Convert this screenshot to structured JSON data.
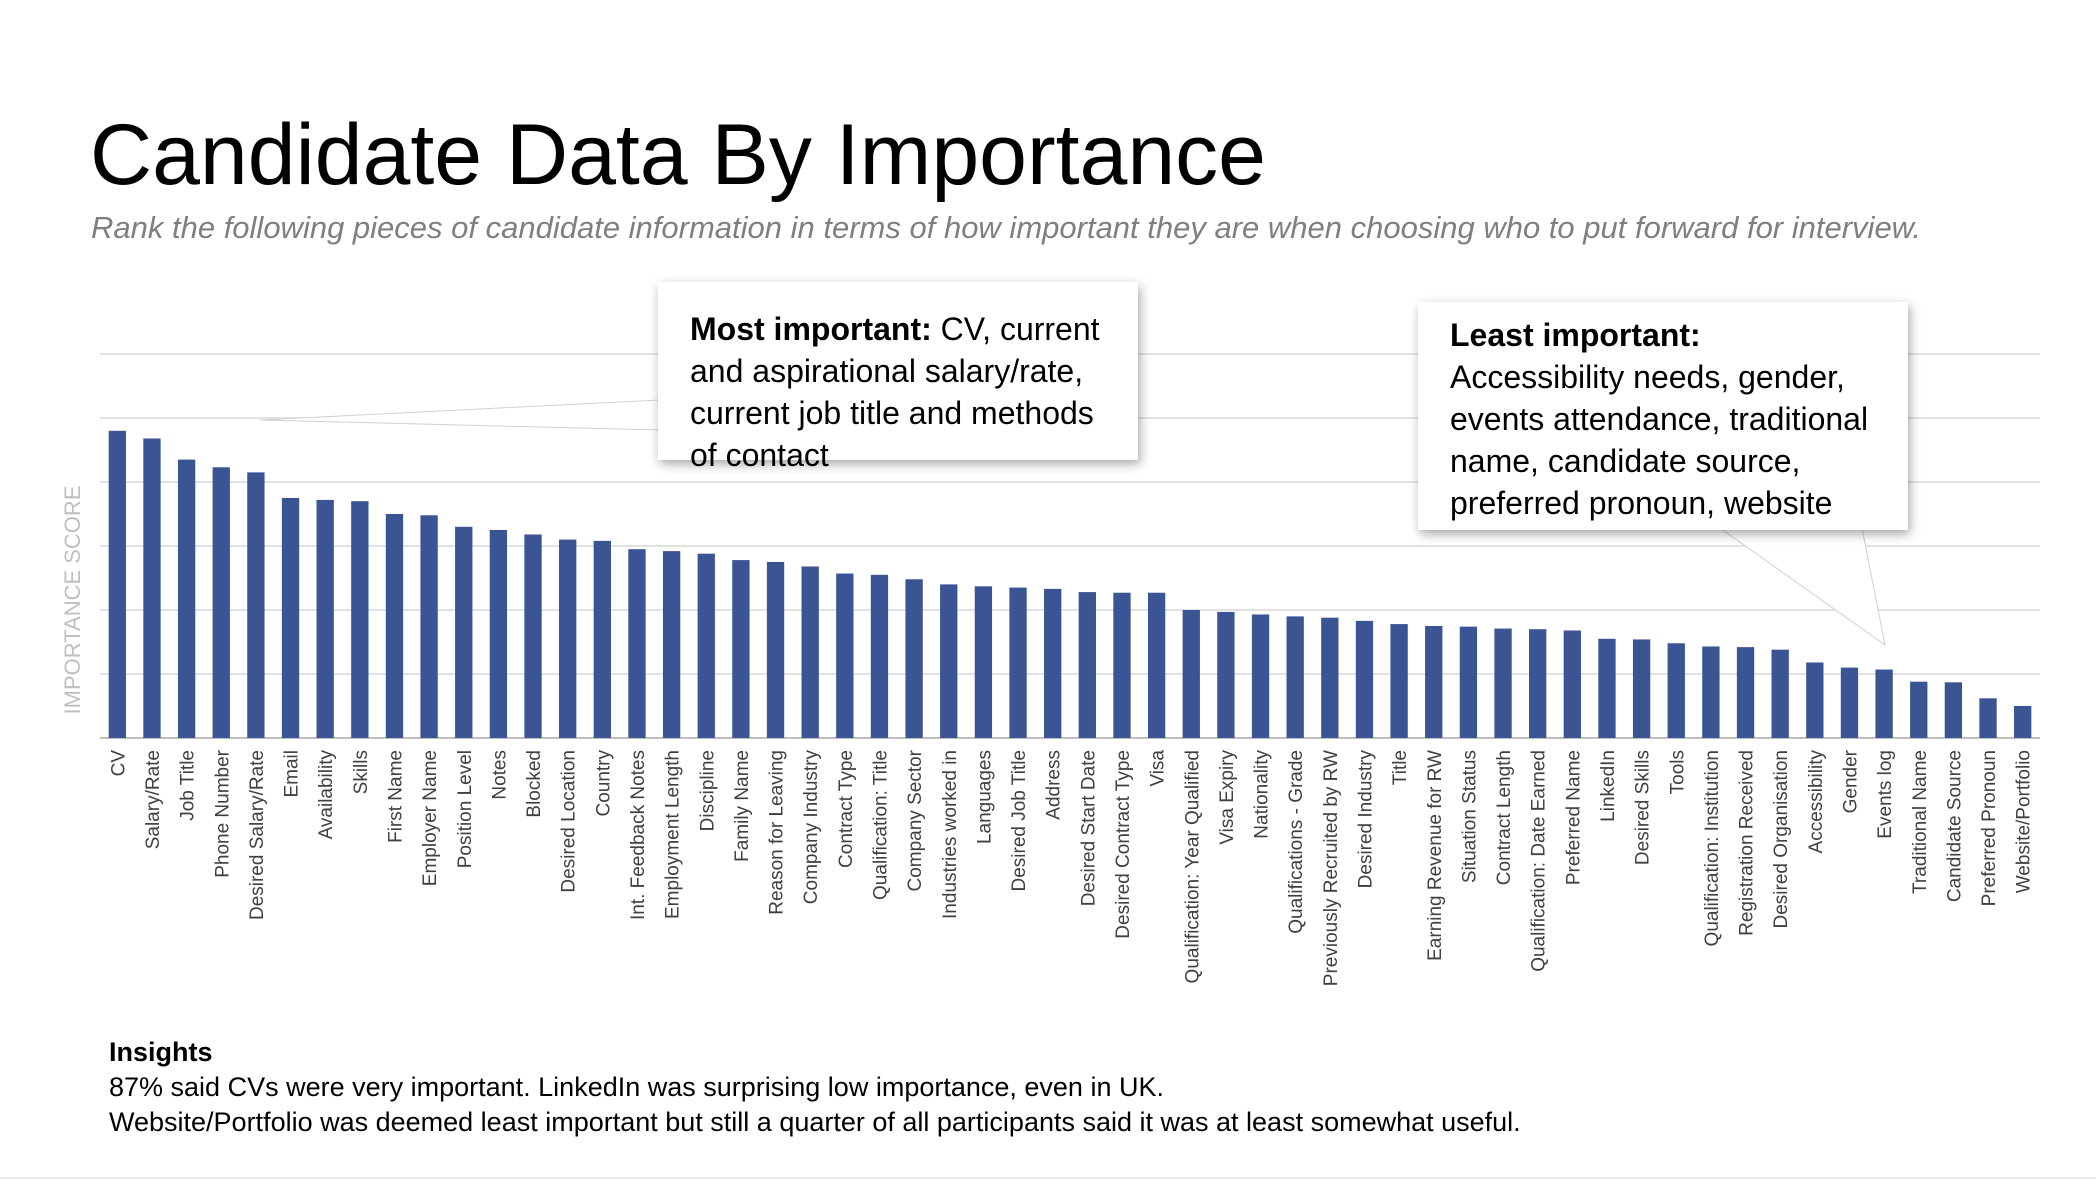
{
  "title": "Candidate Data By Importance",
  "subtitle": "Rank the following pieces of candidate information in terms of how important they are when choosing who to put forward for interview.",
  "callouts": {
    "most": {
      "heading": "Most important:",
      "text": " CV, current and aspirational salary/rate, current job title and methods of contact"
    },
    "least": {
      "heading": "Least important:",
      "text": " Accessibility needs, gender, events attendance, traditional name, candidate source, preferred pronoun, website"
    }
  },
  "insights": {
    "heading": "Insights",
    "line1": "87% said CVs were very important. LinkedIn was surprising low importance, even in UK.",
    "line2": "Website/Portfolio was deemed least important but still a quarter of all participants said it was at least somewhat useful."
  },
  "colors": {
    "bar": "#3a5494",
    "grid": "#d9d9d9",
    "axis_label": "#bfbfbf",
    "subtitle": "#7f7f7f"
  },
  "chart_data": {
    "type": "bar",
    "title": "",
    "xlabel": "",
    "ylabel": "IMPORTANCE SCORE",
    "ylim": [
      0,
      6
    ],
    "grid": true,
    "y_tick_labels_shown": false,
    "categories": [
      "CV",
      "Salary/Rate",
      "Job Title",
      "Phone Number",
      "Desired Salary/Rate",
      "Email",
      "Availability",
      "Skills",
      "First Name",
      "Employer Name",
      "Position Level",
      "Notes",
      "Blocked",
      "Desired Location",
      "Country",
      "Int. Feedback Notes",
      "Employment Length",
      "Discipline",
      "Family Name",
      "Reason for Leaving",
      "Company Industry",
      "Contract Type",
      "Qualification: Title",
      "Company Sector",
      "Industries worked in",
      "Languages",
      "Desired Job Title",
      "Address",
      "Desired Start Date",
      "Desired Contract Type",
      "Visa",
      "Qualification: Year Qualified",
      "Visa Expiry",
      "Nationality",
      "Qualifications - Grade",
      "Previously Recruited by RW",
      "Desired Industry",
      "Title",
      "Earning Revenue for RW",
      "Situation Status",
      "Contract Length",
      "Qualification: Date Earned",
      "Preferred Name",
      "LinkedIn",
      "Desired Skills",
      "Tools",
      "Qualification: Institution",
      "Registration Received",
      "Desired Organisation",
      "Accessibility",
      "Gender",
      "Events log",
      "Traditional Name",
      "Candidate Source",
      "Preferred Pronoun",
      "Website/Portfolio"
    ],
    "values": [
      4.8,
      4.68,
      4.35,
      4.23,
      4.15,
      3.75,
      3.72,
      3.7,
      3.5,
      3.48,
      3.3,
      3.25,
      3.18,
      3.1,
      3.08,
      2.95,
      2.92,
      2.88,
      2.78,
      2.75,
      2.68,
      2.57,
      2.55,
      2.48,
      2.4,
      2.37,
      2.35,
      2.33,
      2.28,
      2.27,
      2.27,
      2.0,
      1.97,
      1.93,
      1.9,
      1.88,
      1.83,
      1.78,
      1.75,
      1.74,
      1.71,
      1.7,
      1.68,
      1.55,
      1.54,
      1.48,
      1.43,
      1.42,
      1.38,
      1.18,
      1.1,
      1.07,
      0.88,
      0.87,
      0.62,
      0.5
    ]
  }
}
